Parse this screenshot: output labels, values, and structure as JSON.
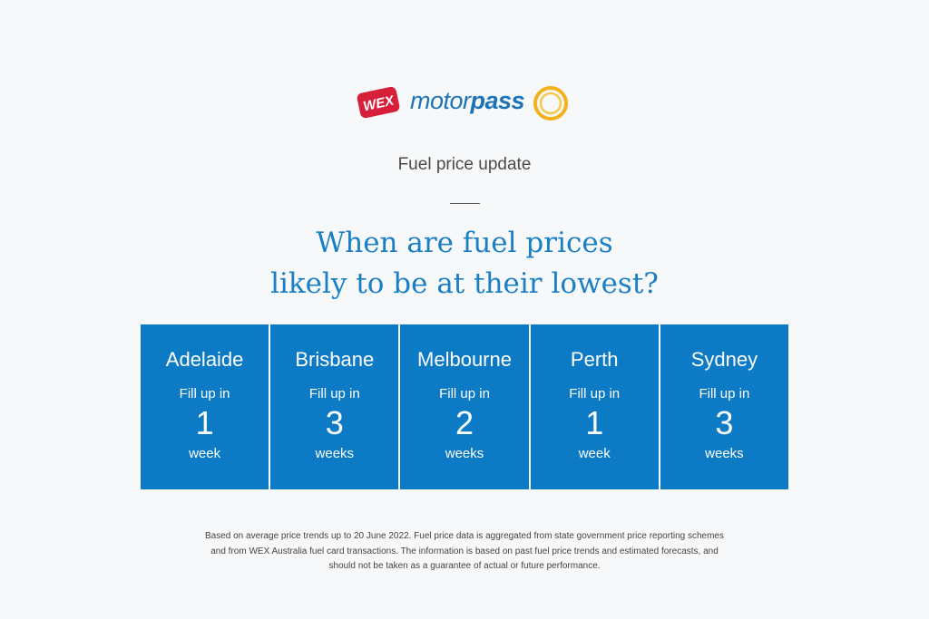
{
  "brand": {
    "wex_text": "WEX",
    "motor_text": "motor",
    "pass_text": "pass",
    "colors": {
      "wex_red": "#d71f3a",
      "motorpass_blue": "#1c73b8",
      "sun_yellow": "#f2b21a"
    }
  },
  "subtitle": "Fuel price update",
  "headline": {
    "line1": "When are fuel prices",
    "line2": "likely to be at their lowest?"
  },
  "cities": [
    {
      "name": "Adelaide",
      "prefix": "Fill up in",
      "number": "1",
      "unit": "week"
    },
    {
      "name": "Brisbane",
      "prefix": "Fill up in",
      "number": "3",
      "unit": "weeks"
    },
    {
      "name": "Melbourne",
      "prefix": "Fill up in",
      "number": "2",
      "unit": "weeks"
    },
    {
      "name": "Perth",
      "prefix": "Fill up in",
      "number": "1",
      "unit": "week"
    },
    {
      "name": "Sydney",
      "prefix": "Fill up in",
      "number": "3",
      "unit": "weeks"
    }
  ],
  "disclaimer": "Based on average price trends up to 20 June 2022. Fuel price data is aggregated from state government price reporting schemes and from WEX Australia fuel card transactions. The information is based on past fuel price trends and estimated forecasts, and should not be taken as a guarantee of actual or future performance.",
  "colors": {
    "card_bg": "#0c7ac4",
    "headline": "#1a7fc4",
    "page_bg": "#f7f8fa"
  }
}
